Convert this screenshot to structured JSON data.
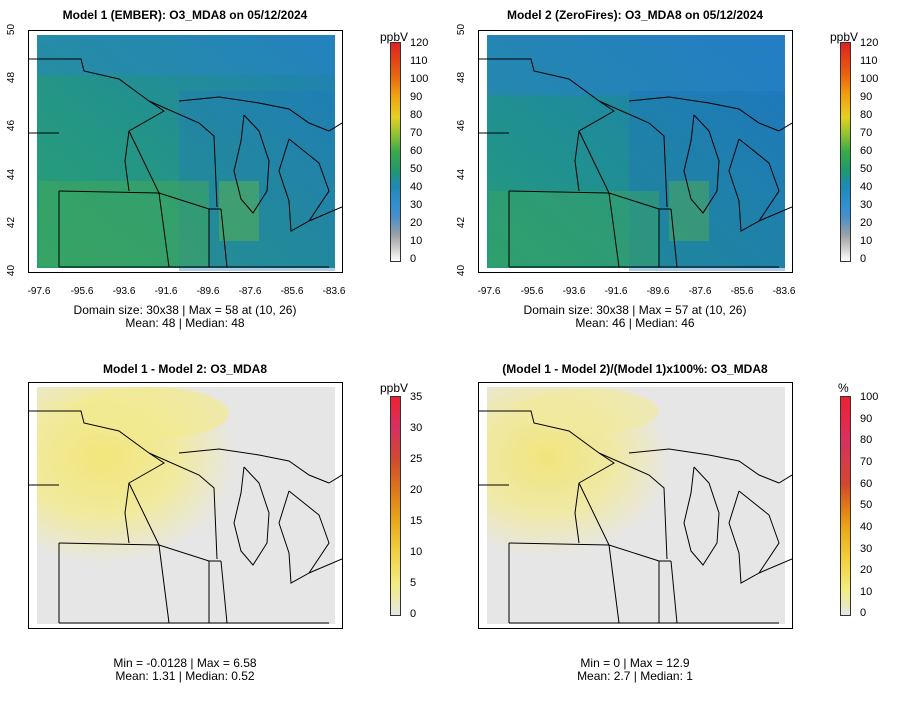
{
  "panels": [
    {
      "id": "p1",
      "title": "Model 1 (EMBER): O3_MDA8 on 05/12/2024",
      "stats_line1": "Domain size: 30x38 | Max = 58 at (10, 26)",
      "stats_line2": "Mean: 48 |  Median: 48",
      "x_ticks": [
        "-97.6",
        "-95.6",
        "-93.6",
        "-91.6",
        "-89.6",
        "-87.6",
        "-85.6",
        "-83.6"
      ],
      "y_ticks": [
        "40",
        "42",
        "44",
        "46",
        "48",
        "50"
      ],
      "colorbar": {
        "unit": "ppbV",
        "labels": [
          "120",
          "110",
          "100",
          "90",
          "80",
          "70",
          "60",
          "50",
          "40",
          "30",
          "20",
          "10",
          "0"
        ]
      }
    },
    {
      "id": "p2",
      "title": "Model 2 (ZeroFires): O3_MDA8 on 05/12/2024",
      "stats_line1": "Domain size: 30x38 | Max = 57 at (10, 26)",
      "stats_line2": "Mean: 46 |  Median: 46",
      "x_ticks": [
        "-97.6",
        "-95.6",
        "-93.6",
        "-91.6",
        "-89.6",
        "-87.6",
        "-85.6",
        "-83.6"
      ],
      "y_ticks": [
        "40",
        "42",
        "44",
        "46",
        "48",
        "50"
      ],
      "colorbar": {
        "unit": "ppbV",
        "labels": [
          "120",
          "110",
          "100",
          "90",
          "80",
          "70",
          "60",
          "50",
          "40",
          "30",
          "20",
          "10",
          "0"
        ]
      }
    },
    {
      "id": "p3",
      "title": "Model 1 - Model 2: O3_MDA8",
      "stats_line1": "Min = -0.0128 | Max = 6.58",
      "stats_line2": "Mean: 1.31 |  Median: 0.52",
      "colorbar": {
        "unit": "ppbV",
        "labels": [
          "35",
          "30",
          "25",
          "20",
          "15",
          "10",
          "5",
          "0"
        ]
      }
    },
    {
      "id": "p4",
      "title": "(Model 1 - Model 2)/(Model 1)x100%: O3_MDA8",
      "stats_line1": "Min = 0 | Max = 12.9",
      "stats_line2": "Mean: 2.7 |  Median: 1",
      "colorbar": {
        "unit": "%",
        "labels": [
          "100",
          "90",
          "80",
          "70",
          "60",
          "50",
          "40",
          "30",
          "20",
          "10",
          "0"
        ]
      }
    }
  ],
  "colors": {
    "ozone_scale": [
      "#ffffff",
      "#cccccc",
      "#9aa0a8",
      "#4a90c8",
      "#2f8fd0",
      "#1f88b8",
      "#1f9a6a",
      "#3aa84a",
      "#8ec232",
      "#e6d020",
      "#f0a010",
      "#e86010",
      "#e02020"
    ],
    "diff_scale": [
      "#e6e6e6",
      "#f2ec80",
      "#f2d040",
      "#e8a818",
      "#e07818",
      "#d04830",
      "#d83060",
      "#f02030"
    ],
    "map_bg_ozone": "#2f9a8a",
    "map_bg_diff": "#e6e6e6",
    "diff_hotspot": "#f3e890"
  }
}
